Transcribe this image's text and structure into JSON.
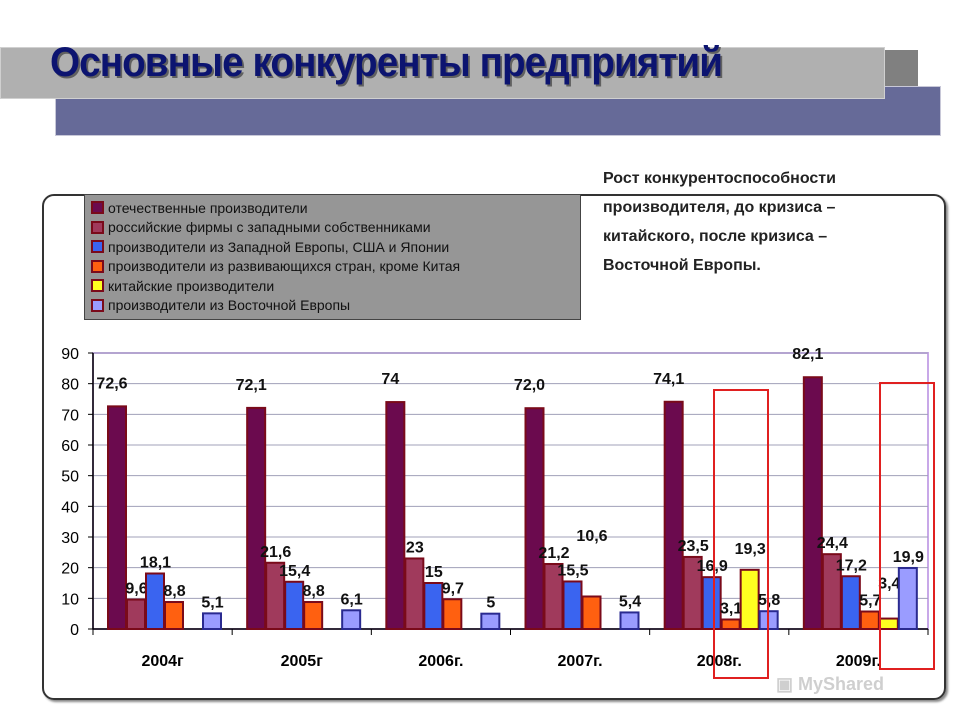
{
  "title": "Основные конкуренты предприятий",
  "note": "Рост конкурентоспособности производителя, до кризиса – китайского, после кризиса – Восточной Европы.",
  "watermark": "MyShared",
  "chart_data": {
    "type": "bar",
    "categories": [
      "2004г",
      "2005г",
      "2006г.",
      "2007г.",
      "2008г.",
      "2009г."
    ],
    "ylim": [
      0,
      90
    ],
    "yticks": [
      0,
      10,
      20,
      30,
      40,
      50,
      60,
      70,
      80,
      90
    ],
    "grid": true,
    "legend_position": "top-left",
    "highlighted_categories": [
      "2008г.",
      "2009г."
    ],
    "highlight_color": "#e02020",
    "series": [
      {
        "name": "отечественные производители",
        "color": "#6b0a4e",
        "values": [
          72.6,
          72.1,
          74,
          72.0,
          74.1,
          82.1
        ],
        "labels": [
          "72,6",
          "72,1",
          "74",
          "72,0",
          "74,1",
          "82,1"
        ]
      },
      {
        "name": "российские фирмы с западными собственниками",
        "color": "#a03a5c",
        "values": [
          9.6,
          21.6,
          23,
          21.2,
          23.5,
          24.4
        ],
        "labels": [
          "9,6",
          "21,6",
          "23",
          "21,2",
          "23,5",
          "24,4"
        ]
      },
      {
        "name": "производители из Западной Европы, США и Японии",
        "color": "#3a64f0",
        "values": [
          18.1,
          15.4,
          15,
          15.5,
          16.9,
          17.2
        ],
        "labels": [
          "18,1",
          "15,4",
          "15",
          "15,5",
          "16,9",
          "17,2"
        ]
      },
      {
        "name": "производители из развивающихся стран, кроме Китая",
        "color": "#ff6010",
        "values": [
          8.8,
          8.8,
          9.7,
          10.6,
          3.1,
          5.7
        ],
        "labels": [
          "8,8",
          "8,8",
          "9,7",
          "10,6",
          "3,1",
          "5,7"
        ]
      },
      {
        "name": "китайские производители",
        "color": "#ffff20",
        "values": [
          null,
          null,
          null,
          null,
          19.3,
          3.4
        ],
        "labels": [
          null,
          null,
          null,
          null,
          "19,3",
          "3,4"
        ]
      },
      {
        "name": "производители из Восточной Европы",
        "color": "#9a9cff",
        "values": [
          5.1,
          6.1,
          5,
          5.4,
          5.8,
          19.9
        ],
        "labels": [
          "5,1",
          "6,1",
          "5",
          "5,4",
          "5,8",
          "19,9"
        ]
      }
    ]
  }
}
